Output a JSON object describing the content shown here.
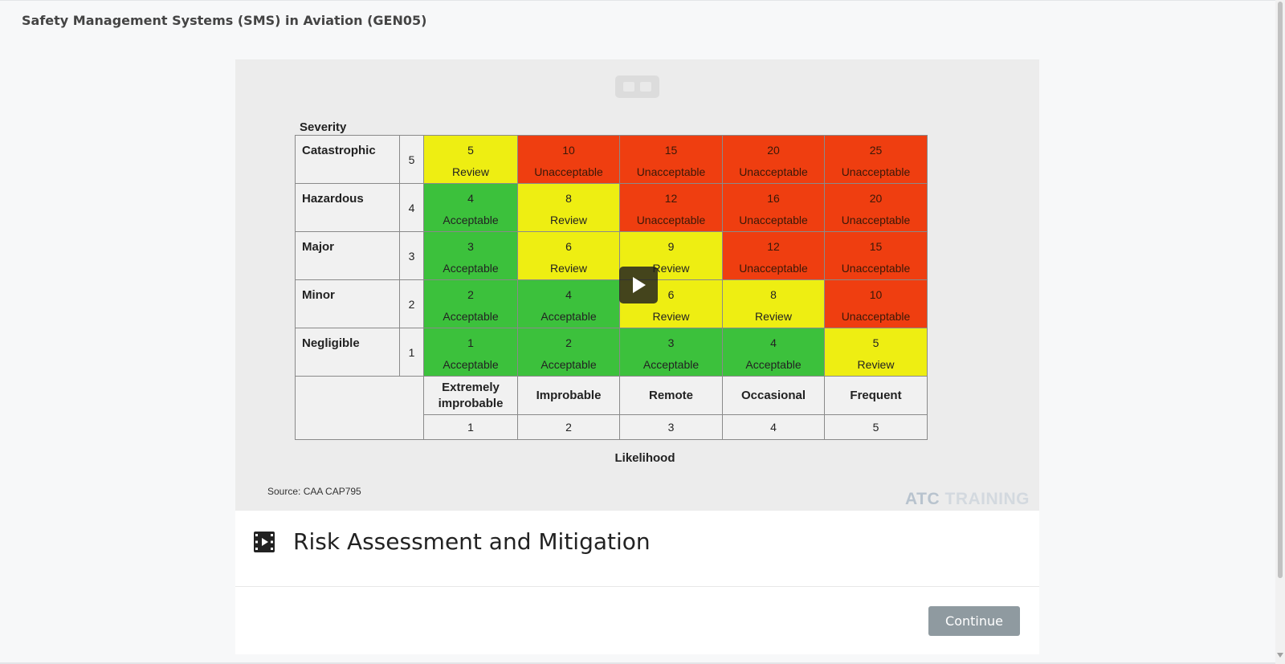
{
  "course": {
    "title": "Safety Management Systems (SMS) in Aviation (GEN05)"
  },
  "slide": {
    "severity_heading": "Severity",
    "likelihood_heading": "Likelihood",
    "source": "Source: CAA CAP795",
    "watermark": {
      "part1": "ATC",
      "part2": "TRAINING"
    },
    "rows": [
      {
        "name": "Catastrophic",
        "level": "5",
        "cells": [
          {
            "value": "5",
            "label": "Review"
          },
          {
            "value": "10",
            "label": "Unacceptable"
          },
          {
            "value": "15",
            "label": "Unacceptable"
          },
          {
            "value": "20",
            "label": "Unacceptable"
          },
          {
            "value": "25",
            "label": "Unacceptable"
          }
        ]
      },
      {
        "name": "Hazardous",
        "level": "4",
        "cells": [
          {
            "value": "4",
            "label": "Acceptable"
          },
          {
            "value": "8",
            "label": "Review"
          },
          {
            "value": "12",
            "label": "Unacceptable"
          },
          {
            "value": "16",
            "label": "Unacceptable"
          },
          {
            "value": "20",
            "label": "Unacceptable"
          }
        ]
      },
      {
        "name": "Major",
        "level": "3",
        "cells": [
          {
            "value": "3",
            "label": "Acceptable"
          },
          {
            "value": "6",
            "label": "Review"
          },
          {
            "value": "9",
            "label": "Review"
          },
          {
            "value": "12",
            "label": "Unacceptable"
          },
          {
            "value": "15",
            "label": "Unacceptable"
          }
        ]
      },
      {
        "name": "Minor",
        "level": "2",
        "cells": [
          {
            "value": "2",
            "label": "Acceptable"
          },
          {
            "value": "4",
            "label": "Acceptable"
          },
          {
            "value": "6",
            "label": "Review"
          },
          {
            "value": "8",
            "label": "Review"
          },
          {
            "value": "10",
            "label": "Unacceptable"
          }
        ]
      },
      {
        "name": "Negligible",
        "level": "1",
        "cells": [
          {
            "value": "1",
            "label": "Acceptable"
          },
          {
            "value": "2",
            "label": "Acceptable"
          },
          {
            "value": "3",
            "label": "Acceptable"
          },
          {
            "value": "4",
            "label": "Acceptable"
          },
          {
            "value": "5",
            "label": "Review"
          }
        ]
      }
    ],
    "likelihood": [
      {
        "name": "Extremely improbable",
        "level": "1"
      },
      {
        "name": "Improbable",
        "level": "2"
      },
      {
        "name": "Remote",
        "level": "3"
      },
      {
        "name": "Occasional",
        "level": "4"
      },
      {
        "name": "Frequent",
        "level": "5"
      }
    ]
  },
  "colors": {
    "Acceptable": "#3cc13c",
    "Review": "#eeee12",
    "Unacceptable": "#ef3e10"
  },
  "icons": {
    "lesson": "video-lesson-icon",
    "play": "play-icon"
  },
  "lesson": {
    "title": "Risk Assessment and Mitigation"
  },
  "actions": {
    "continue_label": "Continue"
  }
}
